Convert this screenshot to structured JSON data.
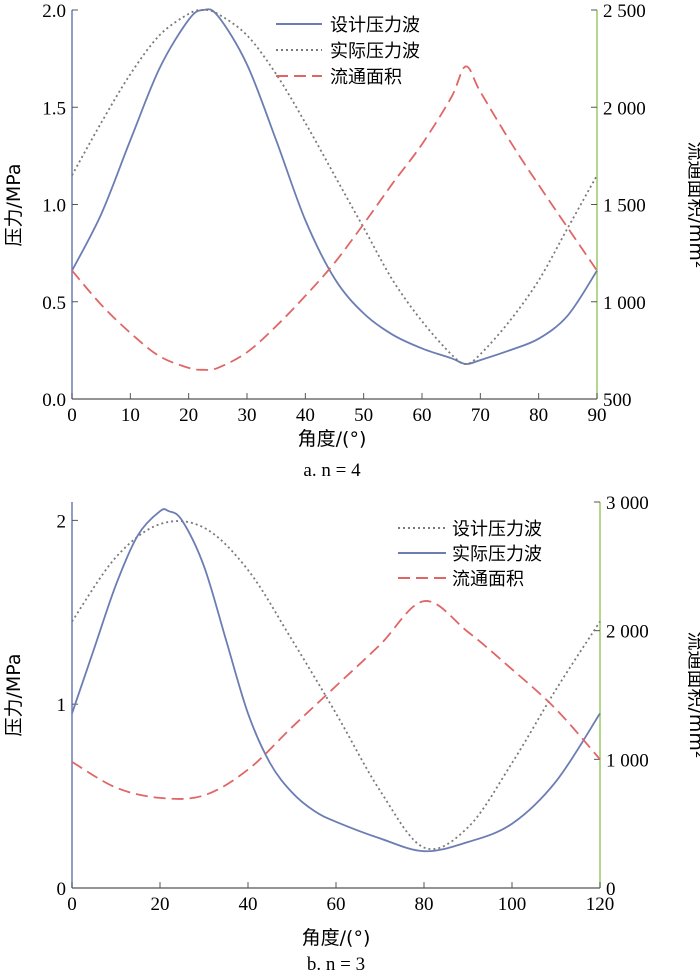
{
  "charts": [
    {
      "caption": "a. n = 4",
      "xlabel": "角度/(°)",
      "ylabel_left": "压力/MPa",
      "ylabel_right": "流通面积/mm²",
      "xticks": [
        "0",
        "10",
        "20",
        "30",
        "40",
        "50",
        "60",
        "70",
        "80",
        "90"
      ],
      "yticks_left": [
        "0.0",
        "0.5",
        "1.0",
        "1.5",
        "2.0"
      ],
      "yticks_right": [
        "500",
        "1 000",
        "1 500",
        "2 000",
        "2 500"
      ],
      "legend": [
        "设计压力波",
        "实际压力波",
        "流通面积"
      ]
    },
    {
      "caption": "b. n = 3",
      "xlabel": "角度/(°)",
      "ylabel_left": "压力/MPa",
      "ylabel_right": "流通面积/mm²",
      "xticks": [
        "0",
        "20",
        "40",
        "60",
        "80",
        "100",
        "120"
      ],
      "yticks_left": [
        "0",
        "1",
        "2"
      ],
      "yticks_right": [
        "0",
        "1 000",
        "2 000",
        "3 000"
      ],
      "legend": [
        "设计压力波",
        "实际压力波",
        "流通面积"
      ]
    }
  ],
  "colors": {
    "blue": "#6b7db3",
    "gray": "#7a7a7a",
    "red": "#e06666",
    "green": "#9ccc65"
  },
  "chart_data": [
    {
      "type": "line",
      "caption": "a. n = 4",
      "xlabel": "角度/(°)",
      "ylabel": "压力/MPa",
      "y2label": "流通面积/mm²",
      "xlim": [
        0,
        90
      ],
      "ylim": [
        0,
        2.0
      ],
      "y2lim": [
        500,
        2500
      ],
      "legend_position": "top-center",
      "series": [
        {
          "name": "设计压力波",
          "axis": "left",
          "style": "solid",
          "color": "#6b7db3",
          "x": [
            0,
            5,
            10,
            15,
            20,
            22.5,
            25,
            30,
            35,
            40,
            45,
            50,
            55,
            60,
            65,
            67.5,
            70,
            75,
            80,
            85,
            90
          ],
          "y": [
            0.66,
            0.95,
            1.33,
            1.7,
            1.95,
            2.0,
            1.97,
            1.72,
            1.33,
            0.92,
            0.62,
            0.44,
            0.33,
            0.26,
            0.21,
            0.18,
            0.2,
            0.25,
            0.31,
            0.43,
            0.66
          ]
        },
        {
          "name": "实际压力波",
          "axis": "left",
          "style": "dotted",
          "color": "#7a7a7a",
          "x": [
            0,
            5,
            10,
            15,
            20,
            22.5,
            25,
            30,
            35,
            40,
            45,
            50,
            55,
            60,
            65,
            67.5,
            70,
            75,
            80,
            85,
            90
          ],
          "y": [
            1.15,
            1.42,
            1.67,
            1.87,
            1.98,
            2.0,
            1.98,
            1.87,
            1.67,
            1.42,
            1.15,
            0.88,
            0.61,
            0.4,
            0.23,
            0.18,
            0.23,
            0.4,
            0.61,
            0.88,
            1.15
          ]
        },
        {
          "name": "流通面积",
          "axis": "right",
          "style": "dashed",
          "color": "#e06666",
          "x": [
            0,
            5,
            10,
            15,
            20,
            22.5,
            25,
            30,
            35,
            40,
            45,
            50,
            55,
            60,
            65,
            67.5,
            70,
            75,
            80,
            85,
            90
          ],
          "y": [
            1160,
            985,
            840,
            720,
            660,
            650,
            660,
            740,
            875,
            1030,
            1200,
            1400,
            1610,
            1810,
            2050,
            2210,
            2080,
            1830,
            1600,
            1380,
            1160
          ]
        }
      ]
    },
    {
      "type": "line",
      "caption": "b. n = 3",
      "xlabel": "角度/(°)",
      "ylabel": "压力/MPa",
      "y2label": "流通面积/mm²",
      "xlim": [
        0,
        120
      ],
      "ylim": [
        0,
        2.1
      ],
      "y2lim": [
        0,
        3000
      ],
      "legend_position": "top-right",
      "series": [
        {
          "name": "设计压力波",
          "axis": "left",
          "style": "dotted",
          "color": "#7a7a7a",
          "x": [
            0,
            10,
            20,
            30,
            40,
            50,
            60,
            70,
            80,
            90,
            100,
            110,
            120
          ],
          "y": [
            1.45,
            1.8,
            1.98,
            1.96,
            1.73,
            1.35,
            0.95,
            0.53,
            0.22,
            0.33,
            0.68,
            1.08,
            1.45
          ]
        },
        {
          "name": "实际压力波",
          "axis": "left",
          "style": "solid",
          "color": "#6b7db3",
          "x": [
            0,
            5,
            10,
            15,
            20,
            22,
            25,
            30,
            35,
            40,
            45,
            50,
            55,
            60,
            70,
            80,
            90,
            100,
            110,
            120
          ],
          "y": [
            0.95,
            1.3,
            1.65,
            1.92,
            2.05,
            2.05,
            2.0,
            1.75,
            1.35,
            0.95,
            0.68,
            0.52,
            0.42,
            0.36,
            0.27,
            0.2,
            0.25,
            0.35,
            0.58,
            0.95
          ]
        },
        {
          "name": "流通面积",
          "axis": "right",
          "style": "dashed",
          "color": "#e06666",
          "x": [
            0,
            10,
            20,
            30,
            40,
            50,
            60,
            70,
            80,
            90,
            100,
            110,
            120
          ],
          "y": [
            980,
            780,
            700,
            720,
            920,
            1250,
            1570,
            1890,
            2230,
            1990,
            1700,
            1390,
            1000
          ]
        }
      ]
    }
  ]
}
